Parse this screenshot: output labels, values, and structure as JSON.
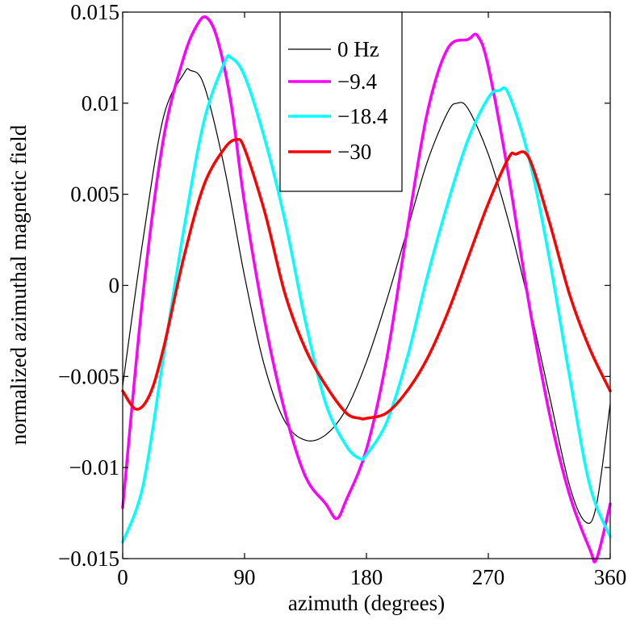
{
  "chart_data": {
    "type": "line",
    "title": "",
    "xlabel": "azimuth (degrees)",
    "ylabel": "normalized azimuthal magnetic field",
    "xlim": [
      0,
      360
    ],
    "ylim": [
      -0.015,
      0.015
    ],
    "xticks": [
      0,
      90,
      180,
      270,
      360
    ],
    "xtick_labels": [
      "0",
      "90",
      "180",
      "270",
      "360"
    ],
    "yticks": [
      -0.015,
      -0.01,
      -0.005,
      0,
      0.005,
      0.01,
      0.015
    ],
    "ytick_labels": [
      "−0.015",
      "−0.01",
      "−0.005",
      "0",
      "0.005",
      "0.01",
      "0.015"
    ],
    "grid": false,
    "legend_position": "top-center",
    "series": [
      {
        "name": "0 Hz",
        "color": "#000000",
        "x": [
          0,
          15,
          30,
          45,
          50,
          60,
          75,
          90,
          105,
          120,
          135,
          150,
          165,
          180,
          195,
          210,
          225,
          240,
          247,
          255,
          270,
          285,
          300,
          315,
          330,
          342,
          350,
          360
        ],
        "y": [
          -0.0055,
          0.0025,
          0.0092,
          0.0116,
          0.0118,
          0.011,
          0.0065,
          0.0005,
          -0.0045,
          -0.0075,
          -0.0085,
          -0.0082,
          -0.0068,
          -0.0042,
          -0.0008,
          0.003,
          0.0068,
          0.0095,
          0.01,
          0.0097,
          0.0072,
          0.0035,
          -0.001,
          -0.006,
          -0.011,
          -0.013,
          -0.012,
          -0.0065
        ]
      },
      {
        "name": "−9.4",
        "color": "#ff00ff",
        "x": [
          0,
          15,
          30,
          45,
          55,
          62,
          70,
          80,
          90,
          105,
          120,
          135,
          150,
          158,
          165,
          180,
          195,
          210,
          225,
          240,
          255,
          262,
          270,
          285,
          300,
          315,
          330,
          345,
          350,
          360
        ],
        "y": [
          -0.0122,
          -0.0005,
          0.008,
          0.0125,
          0.0143,
          0.0147,
          0.0135,
          0.01,
          0.0045,
          -0.002,
          -0.007,
          -0.0105,
          -0.012,
          -0.0128,
          -0.0118,
          -0.009,
          -0.004,
          0.003,
          0.0095,
          0.013,
          0.0135,
          0.0137,
          0.012,
          0.006,
          -0.001,
          -0.007,
          -0.0115,
          -0.0145,
          -0.015,
          -0.012
        ]
      },
      {
        "name": "−18.4",
        "color": "#00ffff",
        "x": [
          0,
          15,
          30,
          45,
          60,
          75,
          80,
          90,
          105,
          120,
          135,
          150,
          165,
          175,
          180,
          195,
          210,
          225,
          240,
          255,
          270,
          278,
          285,
          300,
          315,
          330,
          345,
          360
        ],
        "y": [
          -0.0141,
          -0.011,
          -0.004,
          0.003,
          0.009,
          0.0122,
          0.0125,
          0.0115,
          0.008,
          0.0035,
          -0.002,
          -0.0065,
          -0.0088,
          -0.0095,
          -0.0093,
          -0.0075,
          -0.004,
          0.0005,
          0.0045,
          0.008,
          0.0103,
          0.0107,
          0.0105,
          0.007,
          0.0015,
          -0.005,
          -0.011,
          -0.0138
        ]
      },
      {
        "name": "−30",
        "color": "#ff0000",
        "x": [
          0,
          10,
          20,
          30,
          45,
          60,
          75,
          84,
          90,
          105,
          120,
          135,
          150,
          165,
          175,
          180,
          195,
          210,
          225,
          240,
          255,
          270,
          285,
          290,
          300,
          315,
          330,
          345,
          360
        ],
        "y": [
          -0.0058,
          -0.0068,
          -0.006,
          -0.0035,
          0.0015,
          0.0055,
          0.0075,
          0.008,
          0.0075,
          0.004,
          -0.0005,
          -0.0035,
          -0.0055,
          -0.007,
          -0.0073,
          -0.0073,
          -0.007,
          -0.0058,
          -0.004,
          -0.0015,
          0.0015,
          0.0045,
          0.007,
          0.0072,
          0.007,
          0.0035,
          -0.0005,
          -0.0035,
          -0.0058
        ]
      }
    ]
  }
}
